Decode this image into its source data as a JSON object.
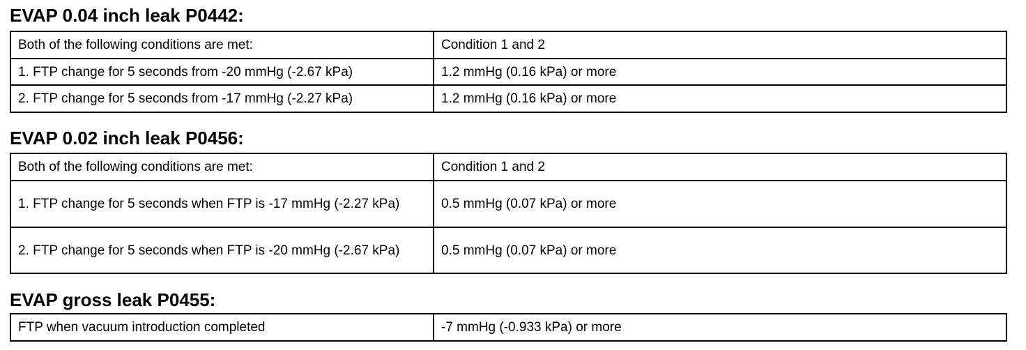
{
  "sections": [
    {
      "title": "EVAP 0.04 inch leak P0442:",
      "rows": [
        [
          "Both of the following conditions are met:",
          "Condition 1 and 2"
        ],
        [
          "1. FTP change for 5 seconds from -20 mmHg (-2.67 kPa)",
          "1.2 mmHg (0.16 kPa) or more"
        ],
        [
          "2. FTP change for 5 seconds from -17 mmHg (-2.27 kPa)",
          "1.2 mmHg (0.16 kPa) or more"
        ]
      ]
    },
    {
      "title": "EVAP 0.02 inch leak P0456:",
      "rows": [
        [
          "Both of the following conditions are met:",
          "Condition 1 and 2"
        ],
        [
          "1. FTP change for 5 seconds when FTP is -17 mmHg (-2.27 kPa)",
          "0.5 mmHg (0.07 kPa) or more"
        ],
        [
          "2. FTP change for 5 seconds when FTP is -20 mmHg (-2.67 kPa)",
          "0.5 mmHg (0.07 kPa) or more"
        ]
      ]
    },
    {
      "title": "EVAP gross leak P0455:",
      "rows": [
        [
          "FTP when vacuum introduction completed",
          "-7 mmHg (-0.933 kPa) or more"
        ]
      ]
    }
  ]
}
